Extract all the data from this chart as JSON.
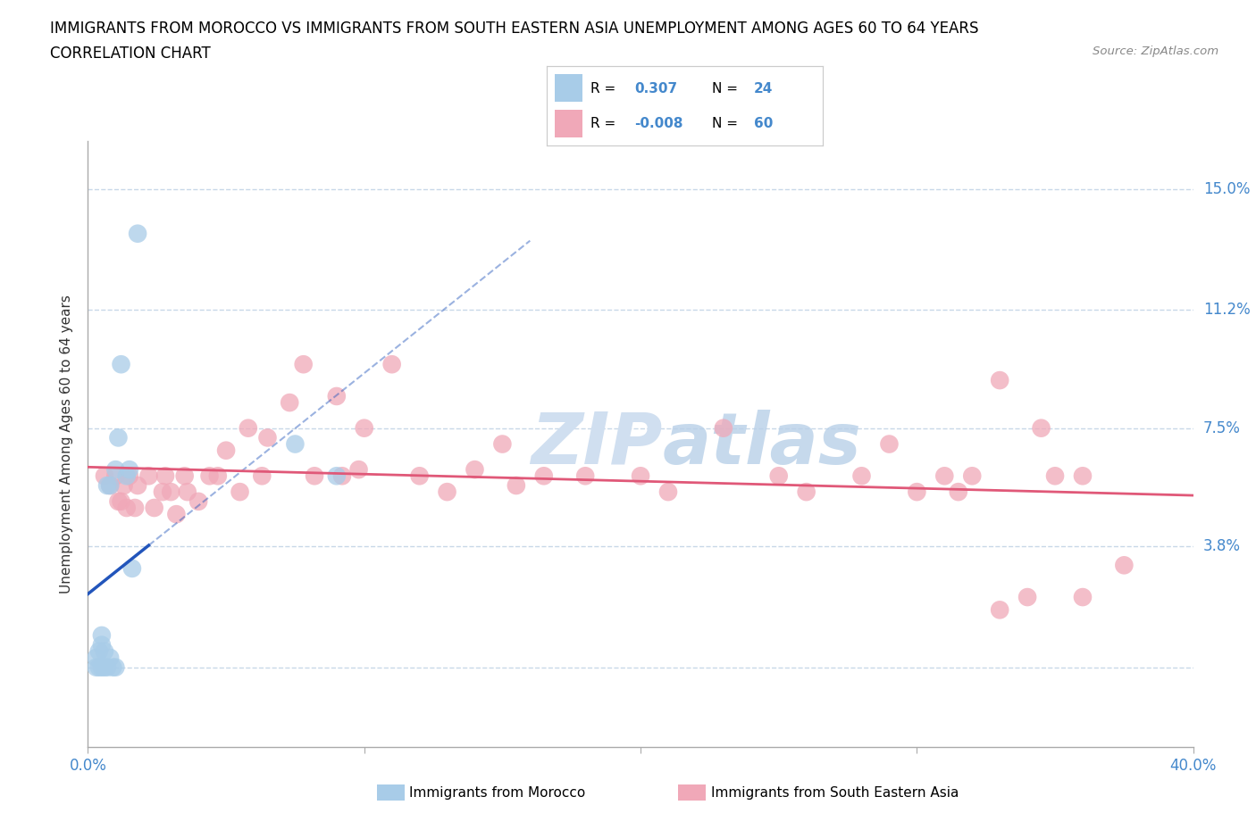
{
  "title_line1": "IMMIGRANTS FROM MOROCCO VS IMMIGRANTS FROM SOUTH EASTERN ASIA UNEMPLOYMENT AMONG AGES 60 TO 64 YEARS",
  "title_line2": "CORRELATION CHART",
  "source": "Source: ZipAtlas.com",
  "ylabel": "Unemployment Among Ages 60 to 64 years",
  "xlim": [
    0.0,
    0.4
  ],
  "ylim": [
    -0.025,
    0.165
  ],
  "morocco_color": "#a8cce8",
  "sea_color": "#f0a8b8",
  "morocco_line_color": "#2255bb",
  "sea_line_color": "#e05878",
  "background_color": "#ffffff",
  "grid_color": "#c8d8e8",
  "watermark_color": "#d0dff0",
  "legend_label1": "Immigrants from Morocco",
  "legend_label2": "Immigrants from South Eastern Asia",
  "morocco_x": [
    0.003,
    0.003,
    0.004,
    0.004,
    0.005,
    0.005,
    0.005,
    0.006,
    0.006,
    0.007,
    0.007,
    0.008,
    0.008,
    0.009,
    0.01,
    0.01,
    0.011,
    0.012,
    0.014,
    0.015,
    0.016,
    0.018,
    0.075,
    0.09
  ],
  "morocco_y": [
    0.0,
    0.003,
    0.0,
    0.005,
    0.0,
    0.007,
    0.01,
    0.0,
    0.005,
    0.0,
    0.057,
    0.003,
    0.057,
    0.0,
    0.062,
    0.0,
    0.072,
    0.095,
    0.06,
    0.062,
    0.031,
    0.136,
    0.07,
    0.06
  ],
  "sea_x": [
    0.006,
    0.008,
    0.01,
    0.011,
    0.012,
    0.013,
    0.014,
    0.015,
    0.017,
    0.018,
    0.022,
    0.024,
    0.027,
    0.028,
    0.03,
    0.032,
    0.035,
    0.036,
    0.04,
    0.044,
    0.047,
    0.05,
    0.055,
    0.058,
    0.063,
    0.065,
    0.073,
    0.078,
    0.082,
    0.09,
    0.092,
    0.098,
    0.1,
    0.11,
    0.12,
    0.13,
    0.14,
    0.15,
    0.155,
    0.165,
    0.18,
    0.2,
    0.21,
    0.23,
    0.25,
    0.26,
    0.28,
    0.29,
    0.3,
    0.31,
    0.315,
    0.32,
    0.33,
    0.34,
    0.35,
    0.36,
    0.33,
    0.345,
    0.36,
    0.375
  ],
  "sea_y": [
    0.06,
    0.057,
    0.06,
    0.052,
    0.052,
    0.057,
    0.05,
    0.06,
    0.05,
    0.057,
    0.06,
    0.05,
    0.055,
    0.06,
    0.055,
    0.048,
    0.06,
    0.055,
    0.052,
    0.06,
    0.06,
    0.068,
    0.055,
    0.075,
    0.06,
    0.072,
    0.083,
    0.095,
    0.06,
    0.085,
    0.06,
    0.062,
    0.075,
    0.095,
    0.06,
    0.055,
    0.062,
    0.07,
    0.057,
    0.06,
    0.06,
    0.06,
    0.055,
    0.075,
    0.06,
    0.055,
    0.06,
    0.07,
    0.055,
    0.06,
    0.055,
    0.06,
    0.018,
    0.022,
    0.06,
    0.06,
    0.09,
    0.075,
    0.022,
    0.032
  ],
  "ytick_positions": [
    0.0,
    0.038,
    0.075,
    0.112,
    0.15
  ],
  "yticklabels": [
    "",
    "3.8%",
    "7.5%",
    "11.2%",
    "15.0%"
  ],
  "xtick_positions": [
    0.0,
    0.1,
    0.2,
    0.3,
    0.4
  ],
  "xticklabels": [
    "0.0%",
    "",
    "",
    "",
    "40.0%"
  ],
  "tick_label_color": "#4488cc",
  "axis_label_color": "#333333",
  "title_fontsize": 12,
  "axis_label_fontsize": 11,
  "tick_fontsize": 12
}
